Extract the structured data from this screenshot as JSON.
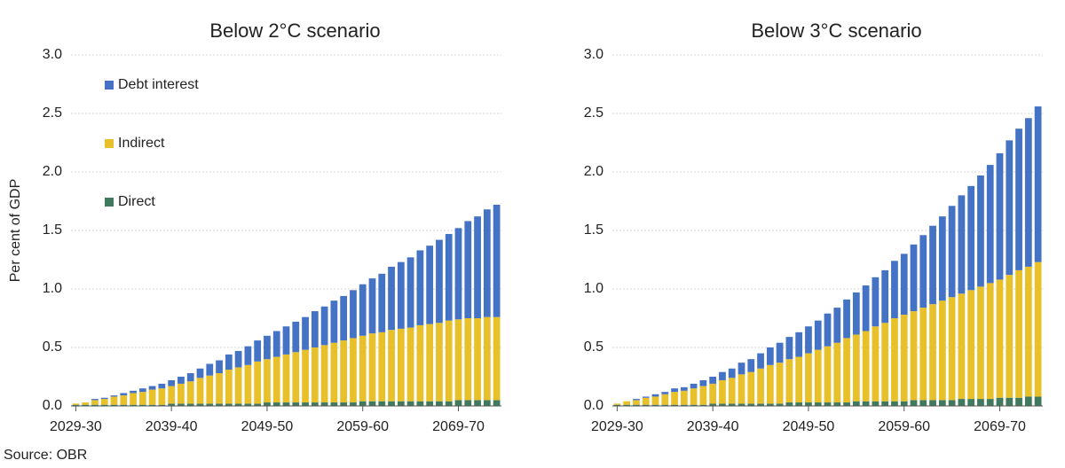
{
  "chart_data": [
    {
      "type": "stacked-bar",
      "title": "Below 2°C scenario",
      "ylabel": "Per cent of GDP",
      "legend": "upper left",
      "grid": true,
      "categories": [
        "2029-30",
        null,
        null,
        null,
        null,
        null,
        null,
        null,
        null,
        null,
        "2039-40",
        null,
        null,
        null,
        null,
        null,
        null,
        null,
        null,
        null,
        "2049-50",
        null,
        null,
        null,
        null,
        null,
        null,
        null,
        null,
        null,
        "2059-60",
        null,
        null,
        null,
        null,
        null,
        null,
        null,
        null,
        null,
        "2069-70",
        null,
        null,
        null,
        null
      ],
      "ylim": [
        0,
        3
      ],
      "yticks": [
        {
          "value": 0,
          "label": "0.0"
        },
        0.5,
        {
          "value": 1,
          "label": "1.0"
        },
        1.5,
        {
          "value": 2,
          "label": "2.0"
        },
        2.5,
        {
          "value": 3,
          "label": "3.0"
        }
      ],
      "series": [
        {
          "name": "Direct",
          "color": "#3f7a5f",
          "values": [
            0.01,
            0.01,
            0.01,
            0.01,
            0.01,
            0.01,
            0.01,
            0.01,
            0.01,
            0.01,
            0.02,
            0.02,
            0.02,
            0.02,
            0.02,
            0.02,
            0.02,
            0.02,
            0.02,
            0.02,
            0.03,
            0.03,
            0.03,
            0.03,
            0.03,
            0.03,
            0.03,
            0.03,
            0.03,
            0.03,
            0.04,
            0.04,
            0.04,
            0.04,
            0.04,
            0.04,
            0.04,
            0.04,
            0.04,
            0.04,
            0.05,
            0.05,
            0.05,
            0.05,
            0.05
          ]
        },
        {
          "name": "Indirect",
          "color": "#e8c12a",
          "values": [
            0.01,
            0.02,
            0.04,
            0.05,
            0.07,
            0.08,
            0.1,
            0.11,
            0.13,
            0.14,
            0.15,
            0.17,
            0.19,
            0.22,
            0.24,
            0.26,
            0.29,
            0.31,
            0.33,
            0.36,
            0.37,
            0.39,
            0.41,
            0.43,
            0.45,
            0.47,
            0.49,
            0.51,
            0.53,
            0.55,
            0.56,
            0.58,
            0.59,
            0.61,
            0.62,
            0.63,
            0.65,
            0.66,
            0.67,
            0.69,
            0.69,
            0.7,
            0.7,
            0.71,
            0.71
          ]
        },
        {
          "name": "Debt interest",
          "color": "#4472c4",
          "values": [
            0.0,
            0.0,
            0.01,
            0.01,
            0.01,
            0.02,
            0.02,
            0.03,
            0.03,
            0.04,
            0.05,
            0.06,
            0.07,
            0.08,
            0.1,
            0.11,
            0.13,
            0.14,
            0.16,
            0.18,
            0.2,
            0.22,
            0.24,
            0.26,
            0.28,
            0.31,
            0.33,
            0.36,
            0.38,
            0.41,
            0.44,
            0.47,
            0.5,
            0.54,
            0.57,
            0.6,
            0.64,
            0.67,
            0.71,
            0.74,
            0.78,
            0.83,
            0.87,
            0.92,
            0.96
          ]
        }
      ]
    },
    {
      "type": "stacked-bar",
      "title": "Below 3°C scenario",
      "grid": true,
      "categories": [
        "2029-30",
        null,
        null,
        null,
        null,
        null,
        null,
        null,
        null,
        null,
        "2039-40",
        null,
        null,
        null,
        null,
        null,
        null,
        null,
        null,
        null,
        "2049-50",
        null,
        null,
        null,
        null,
        null,
        null,
        null,
        null,
        null,
        "2059-60",
        null,
        null,
        null,
        null,
        null,
        null,
        null,
        null,
        null,
        "2069-70",
        null,
        null,
        null,
        null
      ],
      "ylim": [
        0,
        3
      ],
      "yticks": [
        {
          "value": 0,
          "label": "0.0"
        },
        0.5,
        {
          "value": 1,
          "label": "1.0"
        },
        1.5,
        {
          "value": 2,
          "label": "2.0"
        },
        2.5,
        {
          "value": 3,
          "label": "3.0"
        }
      ],
      "series": [
        {
          "color": "#3f7a5f",
          "values": [
            0.01,
            0.01,
            0.01,
            0.01,
            0.01,
            0.01,
            0.01,
            0.01,
            0.01,
            0.01,
            0.02,
            0.02,
            0.02,
            0.02,
            0.02,
            0.02,
            0.02,
            0.02,
            0.03,
            0.03,
            0.03,
            0.03,
            0.03,
            0.03,
            0.03,
            0.04,
            0.04,
            0.04,
            0.04,
            0.04,
            0.04,
            0.05,
            0.05,
            0.05,
            0.05,
            0.05,
            0.06,
            0.06,
            0.06,
            0.06,
            0.07,
            0.07,
            0.07,
            0.08,
            0.08
          ]
        },
        {
          "color": "#e8c12a",
          "values": [
            0.01,
            0.03,
            0.04,
            0.06,
            0.07,
            0.09,
            0.11,
            0.12,
            0.14,
            0.16,
            0.17,
            0.2,
            0.22,
            0.25,
            0.27,
            0.3,
            0.33,
            0.35,
            0.37,
            0.39,
            0.42,
            0.45,
            0.48,
            0.51,
            0.55,
            0.57,
            0.6,
            0.64,
            0.67,
            0.71,
            0.74,
            0.76,
            0.79,
            0.82,
            0.85,
            0.88,
            0.9,
            0.93,
            0.96,
            0.99,
            1.01,
            1.05,
            1.09,
            1.11,
            1.15
          ]
        },
        {
          "color": "#4472c4",
          "values": [
            0.0,
            0.0,
            0.01,
            0.01,
            0.02,
            0.02,
            0.03,
            0.03,
            0.04,
            0.05,
            0.06,
            0.07,
            0.08,
            0.1,
            0.11,
            0.13,
            0.15,
            0.17,
            0.19,
            0.21,
            0.23,
            0.25,
            0.28,
            0.3,
            0.33,
            0.36,
            0.39,
            0.42,
            0.45,
            0.49,
            0.52,
            0.57,
            0.62,
            0.67,
            0.72,
            0.78,
            0.84,
            0.89,
            0.95,
            1.01,
            1.08,
            1.15,
            1.21,
            1.27,
            1.33
          ]
        }
      ]
    }
  ],
  "source": "Source: OBR"
}
